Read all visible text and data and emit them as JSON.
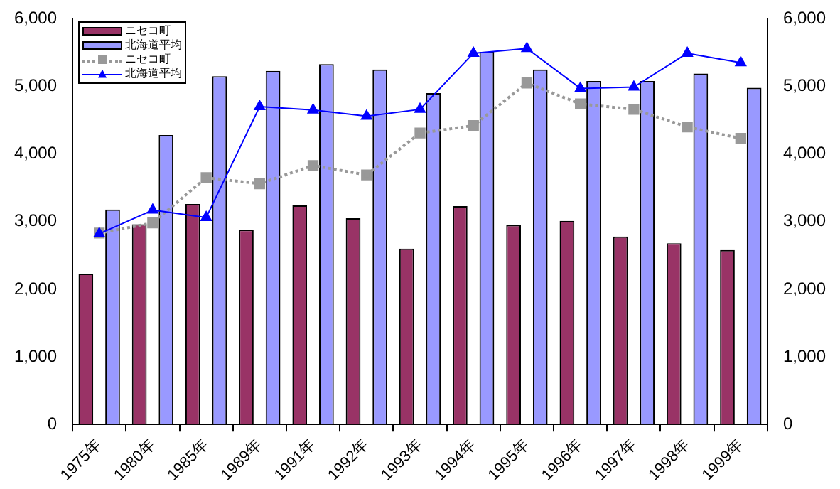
{
  "chart_data": {
    "type": "bar",
    "categories": [
      "1975年",
      "1980年",
      "1985年",
      "1989年",
      "1991年",
      "1992年",
      "1993年",
      "1994年",
      "1995年",
      "1996年",
      "1997年",
      "1998年",
      "1999年"
    ],
    "series": [
      {
        "name": "ニセコ町",
        "color": "#993366",
        "values": [
          2230,
          2960,
          3260,
          2880,
          3240,
          3050,
          2600,
          3230,
          2950,
          3010,
          2780,
          2680,
          2580
        ]
      },
      {
        "name": "北海道平均",
        "color": "#9999ff",
        "values": [
          3180,
          4280,
          5150,
          5230,
          5330,
          5250,
          4900,
          5510,
          5250,
          5080,
          5080,
          5190,
          4980
        ]
      },
      {
        "name": "ニセコ町",
        "type": "line",
        "color": "#999999",
        "marker": "square",
        "line_style": "dotted",
        "values": [
          2830,
          2980,
          3650,
          3560,
          3830,
          3690,
          4310,
          4420,
          5050,
          4740,
          4660,
          4400,
          4230
        ]
      },
      {
        "name": "北海道平均",
        "type": "line",
        "color": "#0000ff",
        "marker": "triangle",
        "line_style": "solid",
        "values": [
          2820,
          3170,
          3060,
          4700,
          4650,
          4560,
          4660,
          5490,
          5560,
          4970,
          4990,
          5490,
          5350
        ]
      }
    ],
    "ylim": [
      0,
      6000
    ],
    "yticks": [
      {
        "value": 0,
        "label": "0"
      },
      {
        "value": 1000,
        "label": "1,000"
      },
      {
        "value": 2000,
        "label": "2,000"
      },
      {
        "value": 3000,
        "label": "3,000"
      },
      {
        "value": 4000,
        "label": "4,000"
      },
      {
        "value": 5000,
        "label": "5,000"
      },
      {
        "value": 6000,
        "label": "6,000"
      }
    ],
    "y2lim": [
      0,
      6000
    ],
    "y2ticks": [
      {
        "value": 0,
        "label": "0"
      },
      {
        "value": 1000,
        "label": "1,000"
      },
      {
        "value": 2000,
        "label": "2,000"
      },
      {
        "value": 3000,
        "label": "3,000"
      },
      {
        "value": 4000,
        "label": "4,000"
      },
      {
        "value": 5000,
        "label": "5,000"
      },
      {
        "value": 6000,
        "label": "6,000"
      }
    ],
    "grid": false,
    "legend": "top left"
  }
}
